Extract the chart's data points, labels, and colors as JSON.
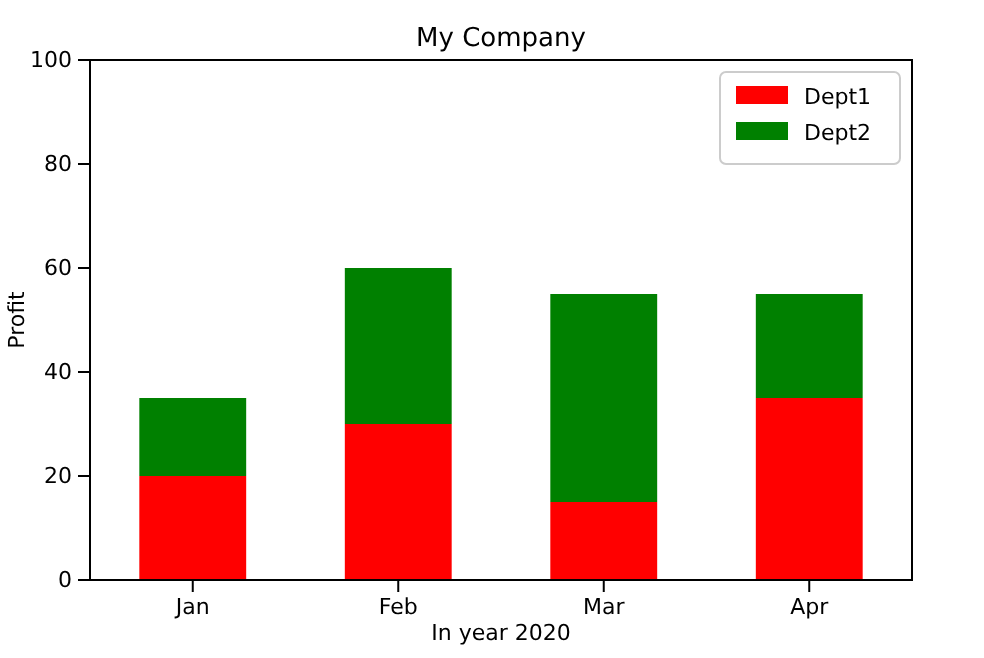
{
  "chart_data": {
    "type": "bar",
    "title": "My Company",
    "xlabel": "In year 2020",
    "ylabel": "Profit",
    "categories": [
      "Jan",
      "Feb",
      "Mar",
      "Apr"
    ],
    "stacked": true,
    "series": [
      {
        "name": "Dept1",
        "color": "#ff0000",
        "values": [
          20,
          30,
          15,
          35
        ]
      },
      {
        "name": "Dept2",
        "color": "#008000",
        "values": [
          15,
          30,
          40,
          20
        ]
      }
    ],
    "ylim": [
      0,
      100
    ],
    "yticks": [
      0,
      20,
      40,
      60,
      80,
      100
    ],
    "legend": "top right",
    "grid": false
  }
}
